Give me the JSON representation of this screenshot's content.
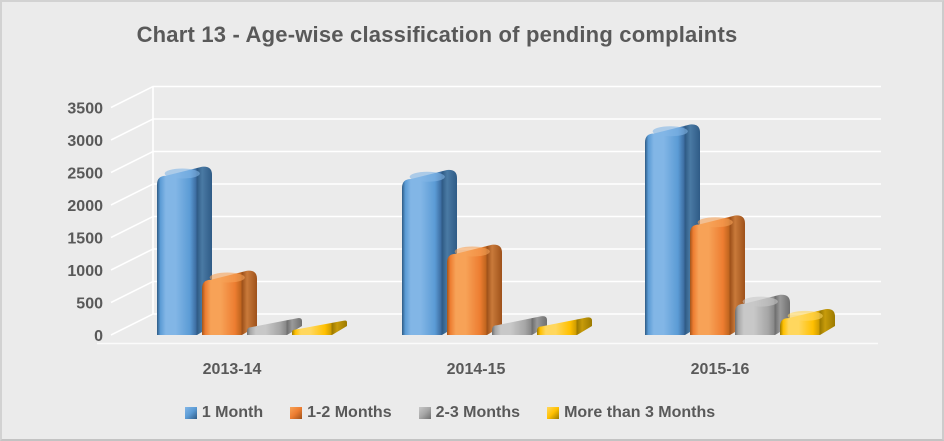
{
  "chart_data": {
    "type": "bar",
    "style": "3d-clustered-rounded-columns",
    "title": "Chart 13 - Age-wise classification of pending complaints",
    "categories": [
      "2013-14",
      "2014-15",
      "2015-16"
    ],
    "series": [
      {
        "name": "1 Month",
        "values": [
          2450,
          2400,
          3100
        ],
        "colors": {
          "main": "#5b9bd5",
          "light": "#82b6e6",
          "dark": "#3e6fa3",
          "side": "#2f5b86",
          "side_light": "#4a7aa4",
          "edge": "#2e5a84"
        }
      },
      {
        "name": "1-2 Months",
        "values": [
          850,
          1250,
          1700
        ],
        "colors": {
          "main": "#ed7d31",
          "light": "#f7a257",
          "dark": "#c2661f",
          "side": "#9e511a",
          "side_light": "#c97a3a",
          "edge": "#a3551b"
        }
      },
      {
        "name": "2-3 Months",
        "values": [
          120,
          150,
          480
        ],
        "colors": {
          "main": "#a6a6a6",
          "light": "#c8c8c8",
          "dark": "#8a8a8a",
          "side": "#6f6f6f",
          "side_light": "#9a9a9a",
          "edge": "#6f6f6f"
        }
      },
      {
        "name": "More than 3 Months",
        "values": [
          80,
          130,
          260
        ],
        "colors": {
          "main": "#ffc000",
          "light": "#ffd75e",
          "dark": "#d29e00",
          "side": "#9c7a00",
          "side_light": "#c79b0a",
          "edge": "#9c7a00"
        }
      }
    ],
    "y_axis": {
      "min": 0,
      "max": 3500,
      "step": 500,
      "tick_labels": [
        "0",
        "500",
        "1000",
        "1500",
        "2000",
        "2500",
        "3000",
        "3500"
      ]
    },
    "grid": true,
    "legend_position": "bottom",
    "colors": {
      "background": "#ebebeb",
      "text": "#595959",
      "gridline": "#ffffff"
    }
  }
}
